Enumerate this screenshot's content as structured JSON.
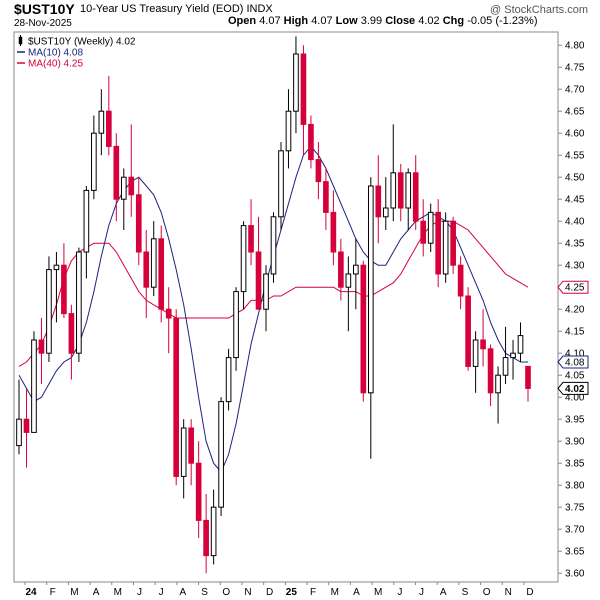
{
  "header": {
    "symbol": "$UST10Y",
    "description": "10-Year US Treasury Yield (EOD) INDX",
    "date": "28-Nov-2025",
    "open_label": "Open",
    "open": "4.07",
    "high_label": "High",
    "high": "4.07",
    "low_label": "Low",
    "low": "3.99",
    "close_label": "Close",
    "close": "4.02",
    "chg_label": "Chg",
    "chg": "-0.05 (-1.23%)",
    "brand": "@ StockCharts.com",
    "brand_icon": "stockcharts-logo-icon"
  },
  "legend": [
    {
      "label": "$UST10Y (Weekly) 4.02",
      "color": "#000000",
      "icon": "candle-icon"
    },
    {
      "label": "MA(10) 4.08",
      "color": "#1a237e",
      "icon": "line-icon"
    },
    {
      "label": "MA(40) 4.25",
      "color": "#d6003b",
      "icon": "line-icon"
    }
  ],
  "chart_data": {
    "type": "candlestick",
    "title": "10-Year US Treasury Yield (EOD)",
    "symbol": "$UST10Y",
    "period": "Weekly",
    "ylim": [
      3.58,
      4.83
    ],
    "yticks": [
      "4.80",
      "4.75",
      "4.70",
      "4.65",
      "4.60",
      "4.55",
      "4.50",
      "4.45",
      "4.40",
      "4.35",
      "4.30",
      "4.25",
      "4.20",
      "4.15",
      "4.10",
      "4.05",
      "4.00",
      "3.95",
      "3.90",
      "3.85",
      "3.80",
      "3.75",
      "3.70",
      "3.65",
      "3.60"
    ],
    "x_months": [
      "24",
      "F",
      "M",
      "A",
      "M",
      "J",
      "J",
      "A",
      "S",
      "O",
      "N",
      "D",
      "25",
      "F",
      "M",
      "A",
      "M",
      "J",
      "J",
      "A",
      "S",
      "O",
      "N",
      "D"
    ],
    "value_tags": [
      {
        "value": 4.25,
        "label": "4.25",
        "color": "#d6003b",
        "bold": false
      },
      {
        "value": 4.08,
        "label": "4.08",
        "color": "#1a237e",
        "bold": false
      },
      {
        "value": 4.02,
        "label": "4.02",
        "color": "#000000",
        "bold": true
      }
    ],
    "ohlc": [
      [
        3.89,
        4.04,
        3.87,
        3.95
      ],
      [
        3.95,
        4.02,
        3.84,
        3.92
      ],
      [
        3.92,
        4.15,
        3.92,
        4.13
      ],
      [
        4.13,
        4.18,
        4.03,
        4.1
      ],
      [
        4.1,
        4.32,
        4.08,
        4.29
      ],
      [
        4.29,
        4.33,
        4.17,
        4.3
      ],
      [
        4.3,
        4.35,
        4.18,
        4.19
      ],
      [
        4.19,
        4.21,
        4.04,
        4.1
      ],
      [
        4.1,
        4.34,
        4.08,
        4.33
      ],
      [
        4.33,
        4.48,
        4.27,
        4.47
      ],
      [
        4.47,
        4.64,
        4.45,
        4.6
      ],
      [
        4.6,
        4.7,
        4.55,
        4.65
      ],
      [
        4.65,
        4.73,
        4.55,
        4.57
      ],
      [
        4.57,
        4.6,
        4.4,
        4.45
      ],
      [
        4.45,
        4.52,
        4.38,
        4.5
      ],
      [
        4.5,
        4.62,
        4.41,
        4.46
      ],
      [
        4.46,
        4.5,
        4.3,
        4.33
      ],
      [
        4.33,
        4.38,
        4.18,
        4.25
      ],
      [
        4.25,
        4.4,
        4.23,
        4.36
      ],
      [
        4.36,
        4.39,
        4.17,
        4.2
      ],
      [
        4.2,
        4.25,
        4.1,
        4.18
      ],
      [
        4.18,
        4.2,
        3.8,
        3.82
      ],
      [
        3.82,
        3.95,
        3.77,
        3.93
      ],
      [
        3.93,
        3.95,
        3.8,
        3.85
      ],
      [
        3.85,
        3.9,
        3.68,
        3.72
      ],
      [
        3.72,
        3.78,
        3.6,
        3.64
      ],
      [
        3.64,
        3.79,
        3.62,
        3.75
      ],
      [
        3.75,
        4.0,
        3.73,
        3.99
      ],
      [
        3.99,
        4.11,
        3.97,
        4.09
      ],
      [
        4.09,
        4.25,
        4.06,
        4.24
      ],
      [
        4.24,
        4.4,
        4.2,
        4.39
      ],
      [
        4.39,
        4.45,
        4.3,
        4.33
      ],
      [
        4.33,
        4.41,
        4.2,
        4.2
      ],
      [
        4.2,
        4.3,
        4.15,
        4.28
      ],
      [
        4.28,
        4.42,
        4.26,
        4.41
      ],
      [
        4.41,
        4.58,
        4.38,
        4.56
      ],
      [
        4.56,
        4.7,
        4.52,
        4.65
      ],
      [
        4.65,
        4.82,
        4.6,
        4.78
      ],
      [
        4.78,
        4.8,
        4.55,
        4.62
      ],
      [
        4.62,
        4.64,
        4.52,
        4.54
      ],
      [
        4.54,
        4.58,
        4.45,
        4.49
      ],
      [
        4.49,
        4.52,
        4.38,
        4.42
      ],
      [
        4.42,
        4.47,
        4.3,
        4.33
      ],
      [
        4.33,
        4.36,
        4.22,
        4.25
      ],
      [
        4.25,
        4.32,
        4.15,
        4.28
      ],
      [
        4.28,
        4.36,
        4.2,
        4.3
      ],
      [
        4.3,
        4.31,
        3.99,
        4.01
      ],
      [
        4.01,
        4.5,
        3.86,
        4.48
      ],
      [
        4.48,
        4.55,
        4.35,
        4.41
      ],
      [
        4.41,
        4.5,
        4.38,
        4.43
      ],
      [
        4.43,
        4.62,
        4.4,
        4.51
      ],
      [
        4.51,
        4.53,
        4.4,
        4.43
      ],
      [
        4.43,
        4.52,
        4.38,
        4.51
      ],
      [
        4.51,
        4.55,
        4.38,
        4.4
      ],
      [
        4.4,
        4.45,
        4.32,
        4.35
      ],
      [
        4.35,
        4.44,
        4.33,
        4.42
      ],
      [
        4.42,
        4.45,
        4.25,
        4.28
      ],
      [
        4.28,
        4.42,
        4.26,
        4.4
      ],
      [
        4.4,
        4.41,
        4.28,
        4.3
      ],
      [
        4.3,
        4.32,
        4.2,
        4.23
      ],
      [
        4.23,
        4.25,
        4.06,
        4.07
      ],
      [
        4.07,
        4.15,
        4.01,
        4.13
      ],
      [
        4.13,
        4.2,
        4.07,
        4.11
      ],
      [
        4.11,
        4.12,
        3.98,
        4.01
      ],
      [
        4.01,
        4.07,
        3.94,
        4.05
      ],
      [
        4.05,
        4.16,
        4.03,
        4.09
      ],
      [
        4.09,
        4.13,
        4.04,
        4.1
      ],
      [
        4.1,
        4.17,
        4.08,
        4.14
      ],
      [
        4.07,
        4.07,
        3.99,
        4.02
      ]
    ],
    "ma10": [
      4.05,
      4.02,
      3.99,
      4.0,
      4.03,
      4.06,
      4.08,
      4.09,
      4.12,
      4.17,
      4.24,
      4.32,
      4.39,
      4.44,
      4.47,
      4.49,
      4.5,
      4.48,
      4.46,
      4.42,
      4.36,
      4.29,
      4.21,
      4.11,
      4.0,
      3.9,
      3.85,
      3.83,
      3.87,
      3.94,
      4.03,
      4.12,
      4.19,
      4.26,
      4.32,
      4.38,
      4.44,
      4.5,
      4.55,
      4.57,
      4.55,
      4.52,
      4.48,
      4.44,
      4.4,
      4.36,
      4.33,
      4.31,
      4.3,
      4.3,
      4.33,
      4.36,
      4.38,
      4.4,
      4.41,
      4.42,
      4.41,
      4.4,
      4.38,
      4.34,
      4.3,
      4.26,
      4.22,
      4.17,
      4.13,
      4.1,
      4.09,
      4.08,
      4.08
    ],
    "ma40": [
      4.07,
      4.08,
      4.1,
      4.12,
      4.16,
      4.21,
      4.27,
      4.31,
      4.33,
      4.34,
      4.35,
      4.35,
      4.35,
      4.33,
      4.3,
      4.27,
      4.24,
      4.22,
      4.21,
      4.2,
      4.19,
      4.18,
      4.18,
      4.18,
      4.18,
      4.18,
      4.18,
      4.18,
      4.18,
      4.19,
      4.2,
      4.22,
      4.22,
      4.22,
      4.23,
      4.23,
      4.24,
      4.25,
      4.25,
      4.25,
      4.25,
      4.25,
      4.25,
      4.24,
      4.24,
      4.24,
      4.23,
      4.23,
      4.24,
      4.25,
      4.26,
      4.28,
      4.31,
      4.34,
      4.37,
      4.39,
      4.4,
      4.4,
      4.4,
      4.39,
      4.38,
      4.36,
      4.34,
      4.32,
      4.3,
      4.28,
      4.27,
      4.26,
      4.25
    ],
    "grid": false
  }
}
